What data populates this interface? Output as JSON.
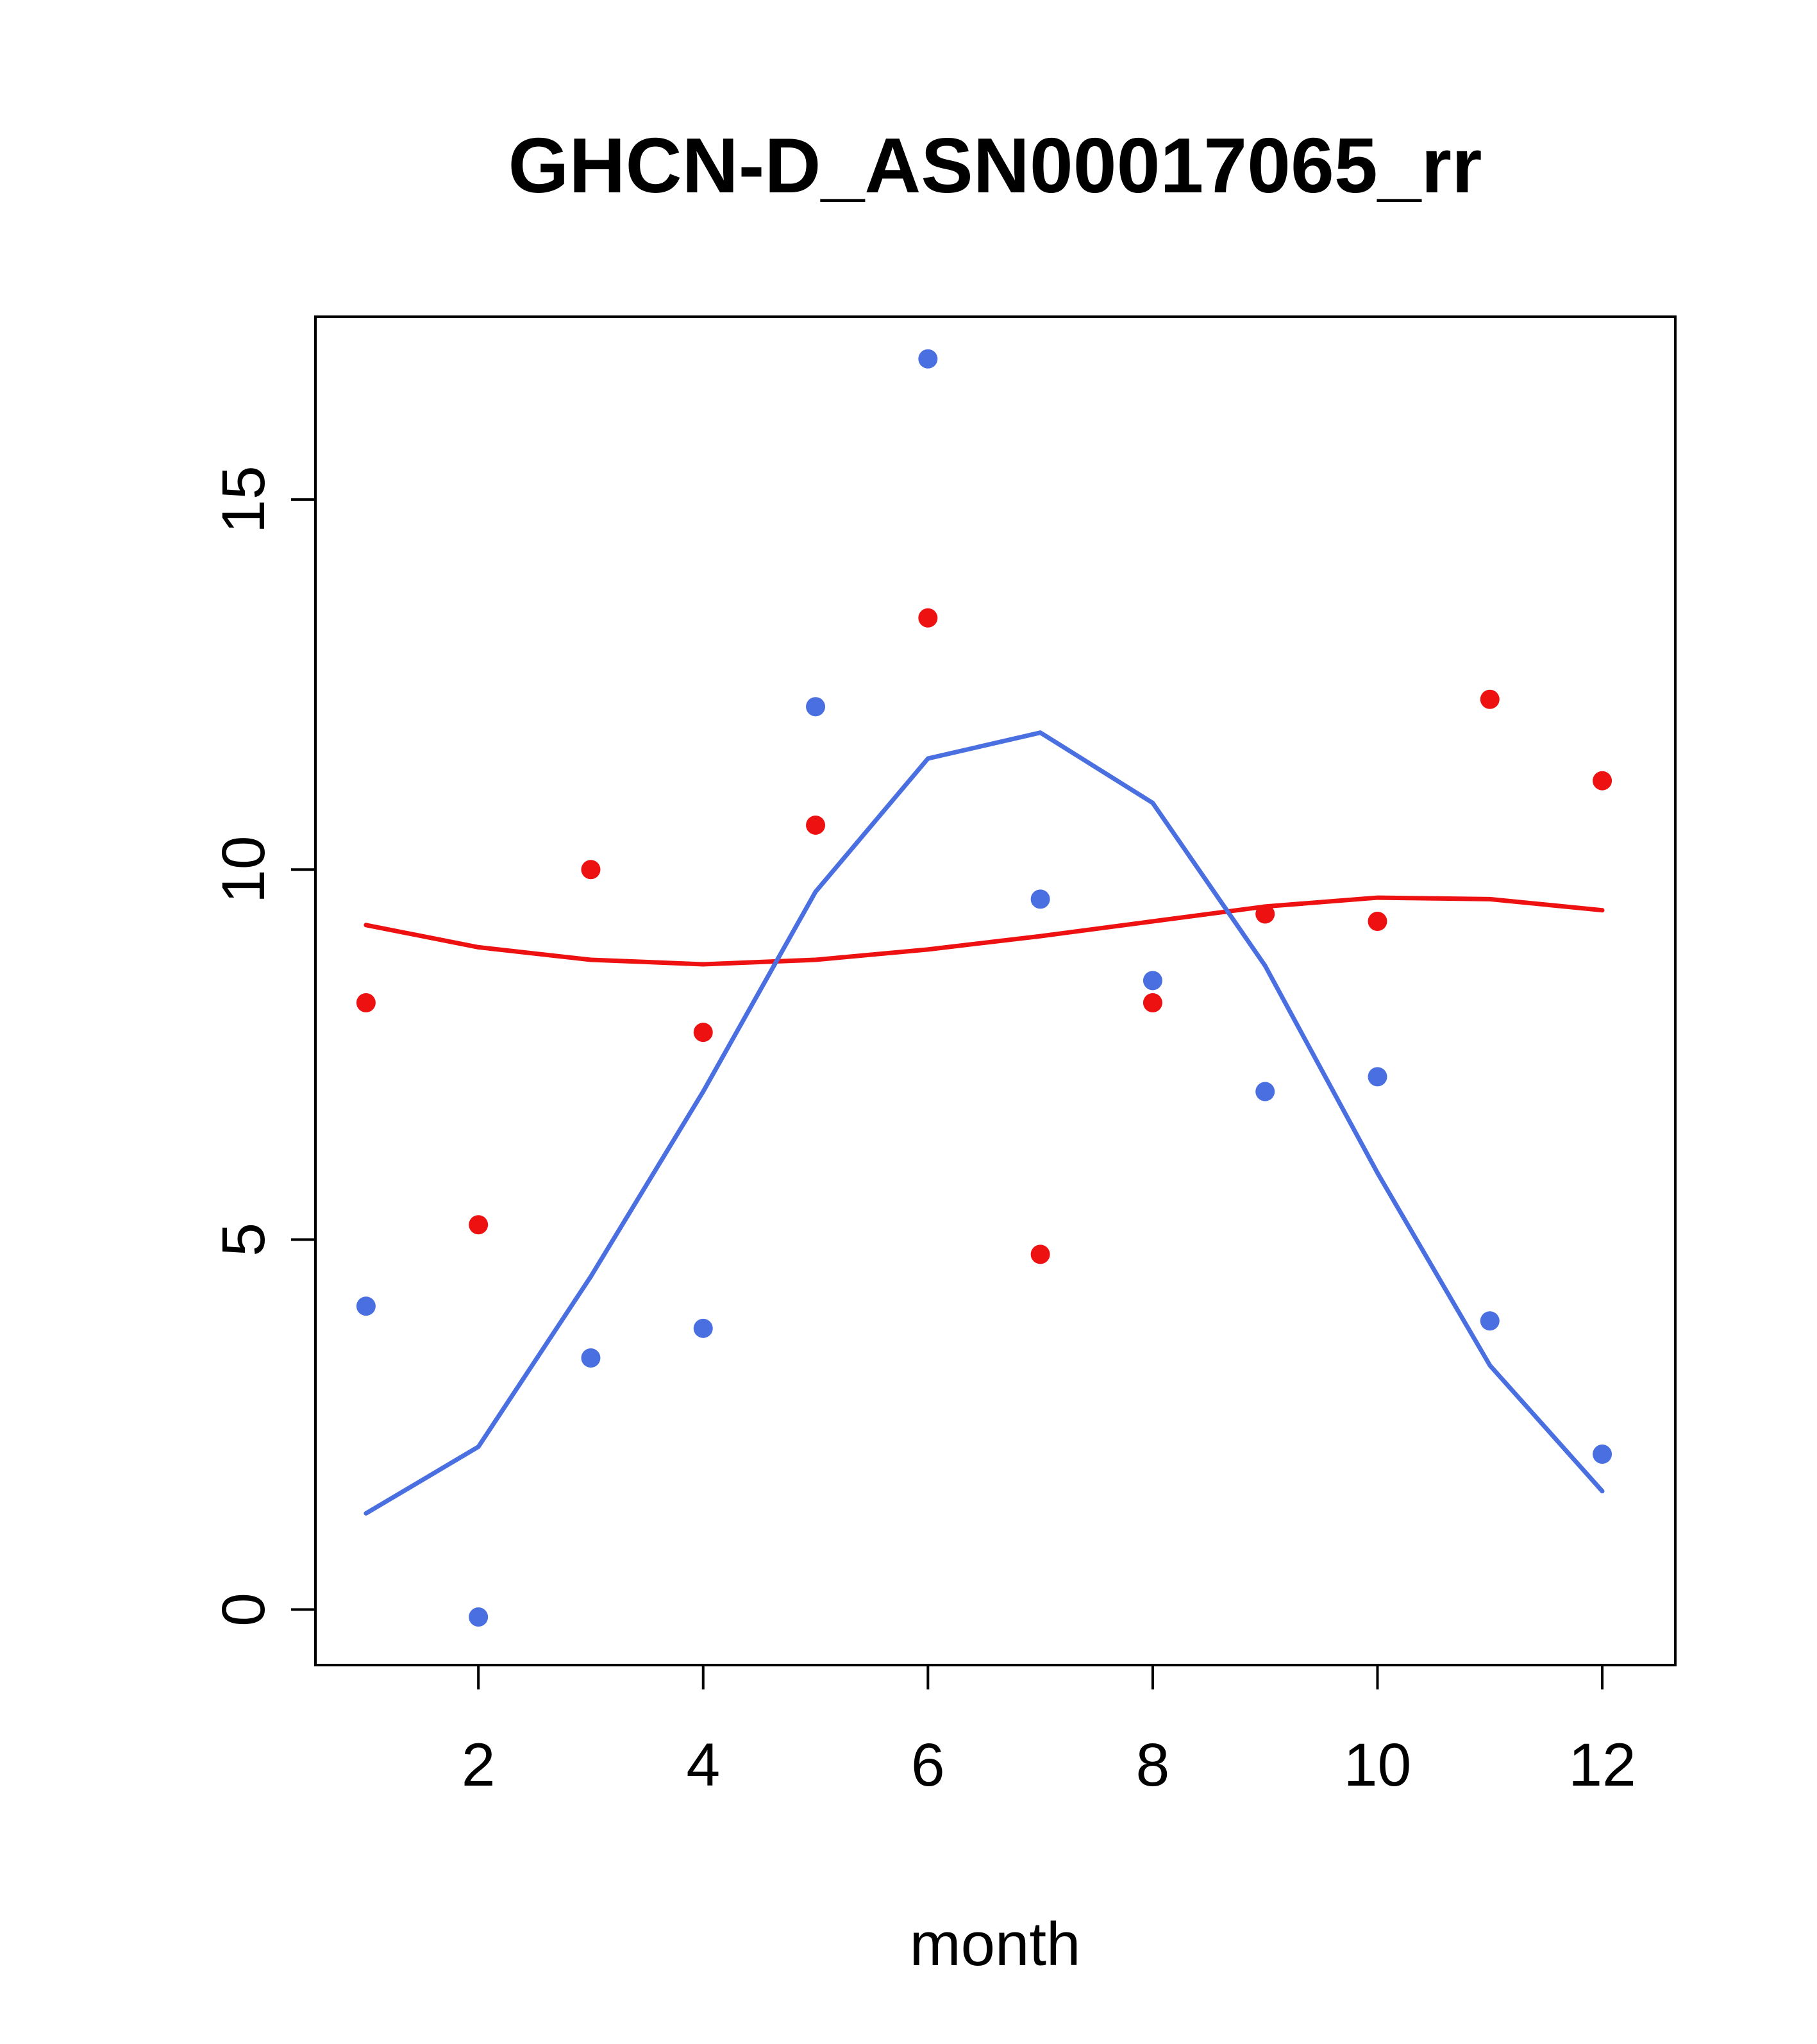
{
  "page": {
    "background_color": "#ffffff",
    "foreground_color": "#000000"
  },
  "chart_data": {
    "type": "scatter",
    "title": "GHCN-D_ASN00017065_rr",
    "xlabel": "month",
    "ylabel": "",
    "x": [
      1,
      2,
      3,
      4,
      5,
      6,
      7,
      8,
      9,
      10,
      11,
      12
    ],
    "xlim": [
      1,
      12
    ],
    "ylim": [
      0,
      17.5
    ],
    "x_ticks": [
      2,
      4,
      6,
      8,
      10,
      12
    ],
    "y_ticks": [
      0,
      5,
      10,
      15
    ],
    "grid": false,
    "legend": "none",
    "series": [
      {
        "name": "red-smooth-line",
        "type": "line",
        "color": "#ee1111",
        "values": [
          9.25,
          8.95,
          8.78,
          8.72,
          8.78,
          8.92,
          9.1,
          9.3,
          9.5,
          9.62,
          9.6,
          9.45
        ]
      },
      {
        "name": "blue-smooth-line",
        "type": "line",
        "color": "#4a6fe0",
        "values": [
          1.3,
          2.2,
          4.5,
          7.0,
          9.7,
          11.5,
          11.85,
          10.9,
          8.7,
          5.9,
          3.3,
          1.6
        ]
      },
      {
        "name": "blue-points",
        "type": "points",
        "color": "#4a6fe0",
        "values": [
          4.1,
          -0.1,
          3.4,
          3.8,
          12.2,
          16.9,
          9.6,
          8.5,
          7.0,
          7.2,
          3.9,
          2.1
        ]
      },
      {
        "name": "red-points",
        "type": "points",
        "color": "#ee1111",
        "values": [
          8.2,
          5.2,
          10.0,
          7.8,
          10.6,
          13.4,
          4.8,
          8.2,
          9.4,
          9.3,
          12.3,
          11.2
        ]
      }
    ]
  }
}
